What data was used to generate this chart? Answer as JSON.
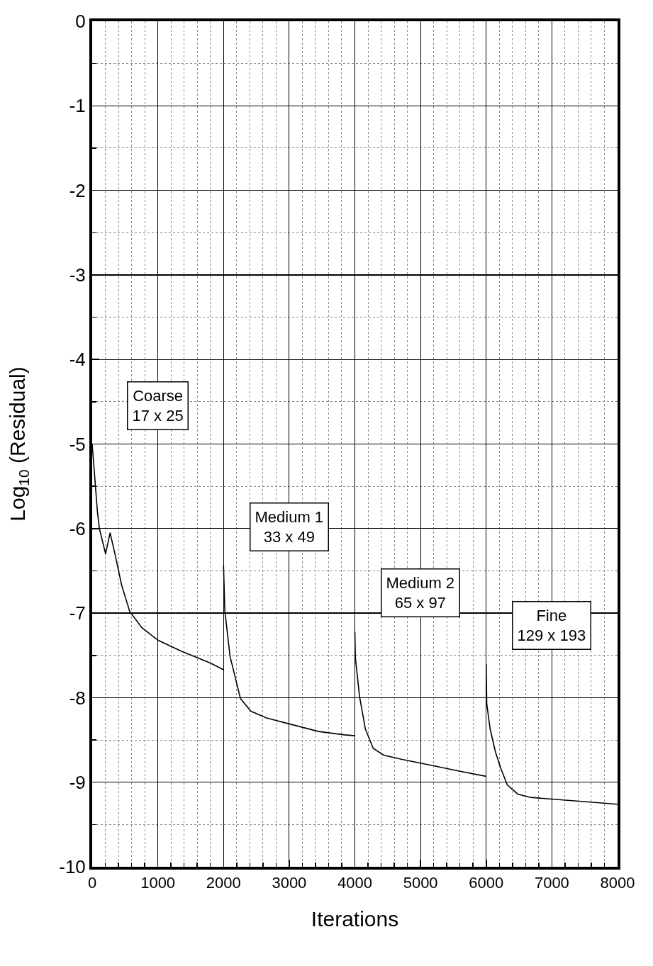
{
  "chart_data": {
    "type": "line",
    "xlabel": "Iterations",
    "ylabel": "Log$_{10}$ (Residual)",
    "xlim": [
      0,
      8000
    ],
    "xticks": [
      0,
      1000,
      2000,
      3000,
      4000,
      5000,
      6000,
      7000,
      8000
    ],
    "ylim": [
      -10,
      0
    ],
    "yticks": [
      0,
      -1,
      -2,
      -3,
      -4,
      -5,
      -6,
      -7,
      -8,
      -9,
      -10
    ],
    "grid": true,
    "legend": false,
    "marker": "none",
    "line_style": "solid",
    "series": [
      {
        "name": "Coarse\n17 x 25",
        "color": "#000000",
        "x": [
          0,
          30,
          80,
          110,
          204,
          273,
          347,
          449,
          571,
          755,
          1000,
          1327,
          1800,
          2000
        ],
        "values": [
          -5.0,
          -5.3,
          -5.8,
          -6.0,
          -6.3,
          -6.05,
          -6.3,
          -6.67,
          -6.98,
          -7.17,
          -7.32,
          -7.44,
          -7.59,
          -7.67
        ]
      },
      {
        "name": "Medium 1\n33 x 49",
        "color": "#000000",
        "x": [
          2000,
          2020,
          2099,
          2258,
          2417,
          2655,
          3000,
          3448,
          3845,
          4000
        ],
        "values": [
          -6.44,
          -6.97,
          -7.51,
          -8.01,
          -8.16,
          -8.24,
          -8.31,
          -8.4,
          -8.44,
          -8.45
        ]
      },
      {
        "name": "Medium 2\n65 x 97",
        "color": "#000000",
        "x": [
          4000,
          4008,
          4072,
          4160,
          4280,
          4440,
          4720,
          5160,
          5600,
          6000
        ],
        "values": [
          -7.22,
          -7.53,
          -7.99,
          -8.37,
          -8.6,
          -8.68,
          -8.73,
          -8.8,
          -8.87,
          -8.93
        ]
      },
      {
        "name": "Fine\n129 x 193",
        "color": "#000000",
        "x": [
          6000,
          6008,
          6060,
          6140,
          6220,
          6320,
          6480,
          6680,
          7000,
          8000
        ],
        "values": [
          -7.6,
          -8.07,
          -8.37,
          -8.64,
          -8.83,
          -9.03,
          -9.14,
          -9.18,
          -9.2,
          -9.26
        ]
      }
    ]
  }
}
